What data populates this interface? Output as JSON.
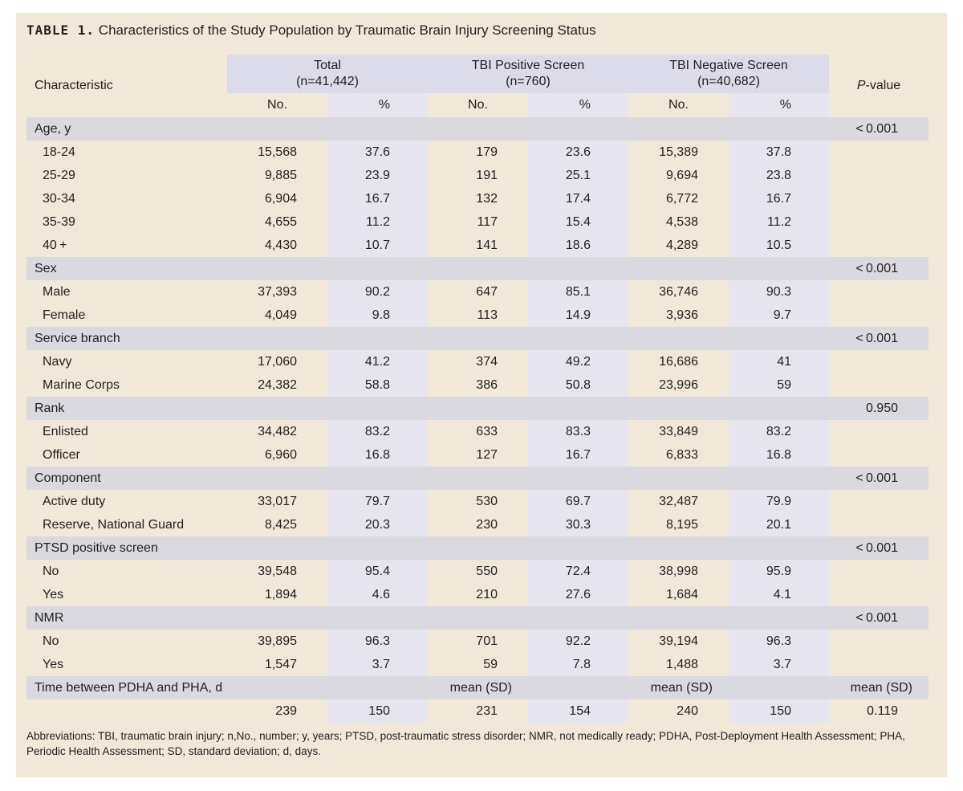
{
  "table_title": {
    "number": "TABLE 1.",
    "text": "Characteristics of the Study Population by Traumatic Brain Injury Screening Status"
  },
  "headers": {
    "characteristic": "Characteristic",
    "groups": [
      {
        "name": "Total",
        "n": "(n=41,442)"
      },
      {
        "name": "TBI Positive Screen",
        "n": "(n=760)"
      },
      {
        "name": "TBI Negative Screen",
        "n": "(n=40,682)"
      }
    ],
    "pvalue_italic": "P",
    "pvalue_rest": "-value",
    "no": "No.",
    "pct": "%"
  },
  "sections": [
    {
      "label": "Age, y",
      "p": "< 0.001",
      "rows": [
        {
          "label": "18-24",
          "values": [
            "15,568",
            "37.6",
            "179",
            "23.6",
            "15,389",
            "37.8"
          ]
        },
        {
          "label": "25-29",
          "values": [
            "9,885",
            "23.9",
            "191",
            "25.1",
            "9,694",
            "23.8"
          ]
        },
        {
          "label": "30-34",
          "values": [
            "6,904",
            "16.7",
            "132",
            "17.4",
            "6,772",
            "16.7"
          ]
        },
        {
          "label": "35-39",
          "values": [
            "4,655",
            "11.2",
            "117",
            "15.4",
            "4,538",
            "11.2"
          ]
        },
        {
          "label": "40 +",
          "values": [
            "4,430",
            "10.7",
            "141",
            "18.6",
            "4,289",
            "10.5"
          ]
        }
      ]
    },
    {
      "label": "Sex",
      "p": "< 0.001",
      "rows": [
        {
          "label": "Male",
          "values": [
            "37,393",
            "90.2",
            "647",
            "85.1",
            "36,746",
            "90.3"
          ]
        },
        {
          "label": "Female",
          "values": [
            "4,049",
            "9.8",
            "113",
            "14.9",
            "3,936",
            "9.7"
          ]
        }
      ]
    },
    {
      "label": "Service branch",
      "p": "< 0.001",
      "rows": [
        {
          "label": "Navy",
          "values": [
            "17,060",
            "41.2",
            "374",
            "49.2",
            "16,686",
            "41"
          ]
        },
        {
          "label": "Marine Corps",
          "values": [
            "24,382",
            "58.8",
            "386",
            "50.8",
            "23,996",
            "59"
          ]
        }
      ]
    },
    {
      "label": "Rank",
      "p": "0.950",
      "rows": [
        {
          "label": "Enlisted",
          "values": [
            "34,482",
            "83.2",
            "633",
            "83.3",
            "33,849",
            "83.2"
          ]
        },
        {
          "label": "Officer",
          "values": [
            "6,960",
            "16.8",
            "127",
            "16.7",
            "6,833",
            "16.8"
          ]
        }
      ]
    },
    {
      "label": "Component",
      "p": "< 0.001",
      "rows": [
        {
          "label": "Active duty",
          "values": [
            "33,017",
            "79.7",
            "530",
            "69.7",
            "32,487",
            "79.9"
          ]
        },
        {
          "label": "Reserve, National Guard",
          "values": [
            "8,425",
            "20.3",
            "230",
            "30.3",
            "8,195",
            "20.1"
          ]
        }
      ]
    },
    {
      "label": "PTSD positive screen",
      "p": "< 0.001",
      "rows": [
        {
          "label": "No",
          "values": [
            "39,548",
            "95.4",
            "550",
            "72.4",
            "38,998",
            "95.9"
          ]
        },
        {
          "label": "Yes",
          "values": [
            "1,894",
            "4.6",
            "210",
            "27.6",
            "1,684",
            "4.1"
          ]
        }
      ]
    },
    {
      "label": "NMR",
      "p": "< 0.001",
      "rows": [
        {
          "label": "No",
          "values": [
            "39,895",
            "96.3",
            "701",
            "92.2",
            "39,194",
            "96.3"
          ]
        },
        {
          "label": "Yes",
          "values": [
            "1,547",
            "3.7",
            "59",
            "7.8",
            "1,488",
            "3.7"
          ]
        }
      ]
    }
  ],
  "time_section": {
    "label": "Time between PDHA and PHA, d",
    "stat_label": "mean (SD)",
    "values": [
      "239",
      "150",
      "231",
      "154",
      "240",
      "150"
    ],
    "p": "0.119"
  },
  "footnote": "Abbreviations: TBI, traumatic brain injury; n,No., number; y, years; PTSD, post-traumatic stress disorder; NMR, not medically ready; PDHA, Post-Deployment Health Assessment; PHA, Periodic Health Assessment; SD, standard deviation; d, days."
}
